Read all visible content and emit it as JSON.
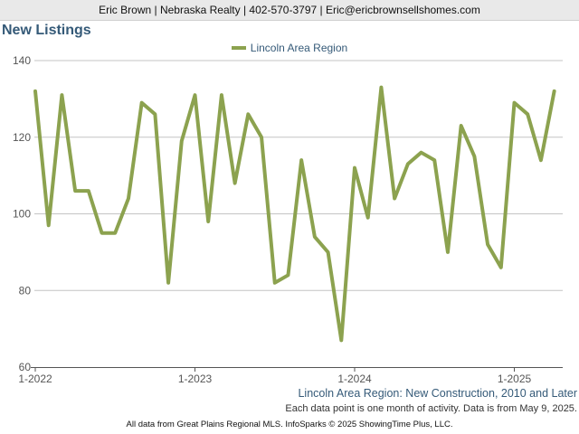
{
  "header": {
    "contact_line": "Eric Brown | Nebraska Realty | 402-570-3797 | Eric@ericbrownsellshomes.com"
  },
  "chart_data": {
    "type": "line",
    "title": "New Listings",
    "series": [
      {
        "name": "Lincoln Area Region",
        "color": "#8ca24f",
        "x": [
          "2022-01",
          "2022-02",
          "2022-03",
          "2022-04",
          "2022-05",
          "2022-06",
          "2022-07",
          "2022-08",
          "2022-09",
          "2022-10",
          "2022-11",
          "2022-12",
          "2023-01",
          "2023-02",
          "2023-03",
          "2023-04",
          "2023-05",
          "2023-06",
          "2023-07",
          "2023-08",
          "2023-09",
          "2023-10",
          "2023-11",
          "2023-12",
          "2024-01",
          "2024-02",
          "2024-03",
          "2024-04",
          "2024-05",
          "2024-06",
          "2024-07",
          "2024-08",
          "2024-09",
          "2024-10",
          "2024-11",
          "2024-12",
          "2025-01",
          "2025-02",
          "2025-03",
          "2025-04"
        ],
        "values": [
          132,
          97,
          131,
          106,
          106,
          95,
          95,
          104,
          129,
          126,
          82,
          119,
          131,
          98,
          131,
          108,
          126,
          120,
          82,
          84,
          114,
          94,
          90,
          67,
          112,
          99,
          133,
          104,
          113,
          116,
          114,
          90,
          123,
          115,
          92,
          86,
          129,
          126,
          114,
          132
        ]
      }
    ],
    "ylim": [
      60,
      140
    ],
    "yticks": [
      60,
      80,
      100,
      120,
      140
    ],
    "xticks": [
      "1-2022",
      "1-2023",
      "1-2024",
      "1-2025"
    ],
    "grid": true,
    "legend_position": "top-center"
  },
  "subtitle": "Lincoln Area Region: New Construction, 2010 and Later",
  "note": "Each data point is one month of activity. Data is from May 9, 2025.",
  "footer": "All data from Great Plains Regional MLS. InfoSparks © 2025 ShowingTime Plus, LLC."
}
